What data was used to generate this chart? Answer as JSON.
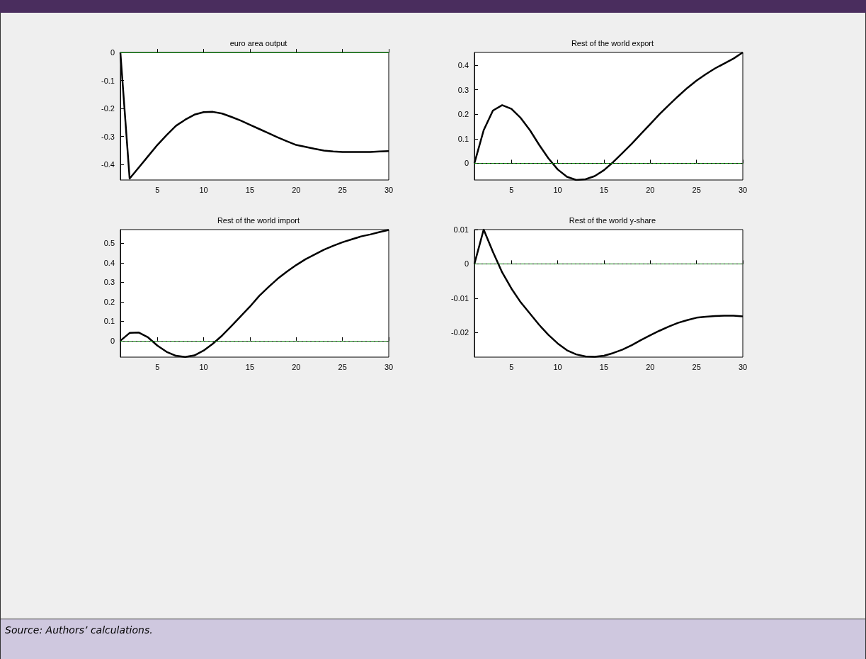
{
  "chart_data": [
    {
      "type": "line",
      "title": "euro area output",
      "x": [
        1,
        2,
        3,
        4,
        5,
        6,
        7,
        8,
        9,
        10,
        11,
        12,
        13,
        14,
        15,
        16,
        17,
        18,
        19,
        20,
        21,
        22,
        23,
        24,
        25,
        26,
        27,
        28,
        29,
        30
      ],
      "series": [
        {
          "color": "#000000",
          "values": [
            0,
            -0.45,
            -0.41,
            -0.37,
            -0.33,
            -0.295,
            -0.262,
            -0.24,
            -0.222,
            -0.213,
            -0.212,
            -0.218,
            -0.23,
            -0.243,
            -0.258,
            -0.273,
            -0.288,
            -0.303,
            -0.317,
            -0.33,
            -0.337,
            -0.344,
            -0.35,
            -0.353,
            -0.355,
            -0.355,
            -0.355,
            -0.355,
            -0.353,
            -0.352
          ]
        }
      ],
      "xlim": [
        1,
        30
      ],
      "xticks": [
        5,
        10,
        15,
        20,
        25,
        30
      ],
      "ylim": [
        -0.455,
        0
      ],
      "yticks": [
        -0.4,
        -0.3,
        -0.2,
        -0.1,
        0
      ],
      "marker": "none",
      "ref_lines": [
        {
          "axis": "y",
          "value": 0,
          "color": "#008000",
          "line_style": "solid"
        }
      ],
      "annotations": [
        "Source: Authors’ calculations."
      ]
    },
    {
      "type": "line",
      "title": "Rest of the world export",
      "x": [
        1,
        2,
        3,
        4,
        5,
        6,
        7,
        8,
        9,
        10,
        11,
        12,
        13,
        14,
        15,
        16,
        17,
        18,
        19,
        20,
        21,
        22,
        23,
        24,
        25,
        26,
        27,
        28,
        29,
        30
      ],
      "series": [
        {
          "color": "#000000",
          "values": [
            0,
            0.135,
            0.215,
            0.237,
            0.222,
            0.185,
            0.135,
            0.075,
            0.02,
            -0.025,
            -0.055,
            -0.068,
            -0.065,
            -0.052,
            -0.028,
            0.005,
            0.042,
            0.08,
            0.12,
            0.16,
            0.2,
            0.237,
            0.273,
            0.307,
            0.337,
            0.363,
            0.387,
            0.407,
            0.427,
            0.452
          ]
        }
      ],
      "xlim": [
        1,
        30
      ],
      "xticks": [
        5,
        10,
        15,
        20,
        25,
        30
      ],
      "ylim": [
        -0.068,
        0.452
      ],
      "yticks": [
        0,
        0.1,
        0.2,
        0.3,
        0.4
      ],
      "marker": "none",
      "ref_lines": [
        {
          "axis": "y",
          "value": 0,
          "color": "#008000",
          "line_style": "dashed"
        }
      ]
    },
    {
      "type": "line",
      "title": "Rest of the world import",
      "x": [
        1,
        2,
        3,
        4,
        5,
        6,
        7,
        8,
        9,
        10,
        11,
        12,
        13,
        14,
        15,
        16,
        17,
        18,
        19,
        20,
        21,
        22,
        23,
        24,
        25,
        26,
        27,
        28,
        29,
        30
      ],
      "series": [
        {
          "color": "#000000",
          "values": [
            0,
            0.04,
            0.042,
            0.017,
            -0.025,
            -0.057,
            -0.077,
            -0.083,
            -0.075,
            -0.05,
            -0.015,
            0.027,
            0.075,
            0.125,
            0.175,
            0.23,
            0.275,
            0.318,
            0.355,
            0.388,
            0.418,
            0.442,
            0.467,
            0.487,
            0.505,
            0.52,
            0.535,
            0.545,
            0.557,
            0.568
          ]
        }
      ],
      "xlim": [
        1,
        30
      ],
      "xticks": [
        5,
        10,
        15,
        20,
        25,
        30
      ],
      "ylim": [
        -0.084,
        0.57
      ],
      "yticks": [
        0,
        0.1,
        0.2,
        0.3,
        0.4,
        0.5
      ],
      "marker": "none",
      "ref_lines": [
        {
          "axis": "y",
          "value": 0,
          "color": "#008000",
          "line_style": "dashed"
        }
      ]
    },
    {
      "type": "line",
      "title": "Rest of the world y-share",
      "x": [
        1,
        2,
        3,
        4,
        5,
        6,
        7,
        8,
        9,
        10,
        11,
        12,
        13,
        14,
        15,
        16,
        17,
        18,
        19,
        20,
        21,
        22,
        23,
        24,
        25,
        26,
        27,
        28,
        29,
        30
      ],
      "series": [
        {
          "color": "#000000",
          "values": [
            0,
            0.01,
            0.0035,
            -0.0025,
            -0.0072,
            -0.0112,
            -0.0145,
            -0.0178,
            -0.0207,
            -0.0232,
            -0.0252,
            -0.0264,
            -0.027,
            -0.0271,
            -0.0268,
            -0.026,
            -0.025,
            -0.0237,
            -0.0222,
            -0.0208,
            -0.0195,
            -0.0183,
            -0.0172,
            -0.0164,
            -0.0157,
            -0.0154,
            -0.0152,
            -0.0151,
            -0.0151,
            -0.0153
          ]
        }
      ],
      "xlim": [
        1,
        30
      ],
      "xticks": [
        5,
        10,
        15,
        20,
        25,
        30
      ],
      "ylim": [
        -0.0272,
        0.01
      ],
      "yticks": [
        -0.02,
        -0.01,
        0,
        0.01
      ],
      "marker": "none",
      "ref_lines": [
        {
          "axis": "y",
          "value": 0,
          "color": "#008000",
          "line_style": "dashed"
        }
      ]
    }
  ]
}
